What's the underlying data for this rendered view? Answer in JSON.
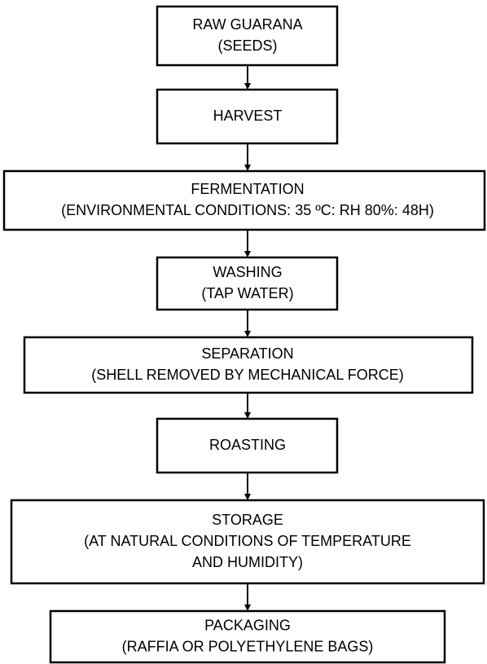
{
  "nodes": [
    {
      "lines": [
        "RAW GUARANA",
        "(SEEDS)"
      ]
    },
    {
      "lines": [
        "HARVEST"
      ]
    },
    {
      "lines": [
        "FERMENTATION",
        "(ENVIRONMENTAL CONDITIONS: 35 ºC: RH 80%: 48H)"
      ]
    },
    {
      "lines": [
        "WASHING",
        "(TAP WATER)"
      ]
    },
    {
      "lines": [
        "SEPARATION",
        "(SHELL REMOVED BY MECHANICAL FORCE)"
      ]
    },
    {
      "lines": [
        "ROASTING"
      ]
    },
    {
      "lines": [
        "STORAGE",
        "(AT NATURAL CONDITIONS OF TEMPERATURE",
        "AND HUMIDITY)"
      ]
    },
    {
      "lines": [
        "PACKAGING",
        "(RAFFIA OR POLYETHYLENE BAGS)"
      ]
    }
  ]
}
